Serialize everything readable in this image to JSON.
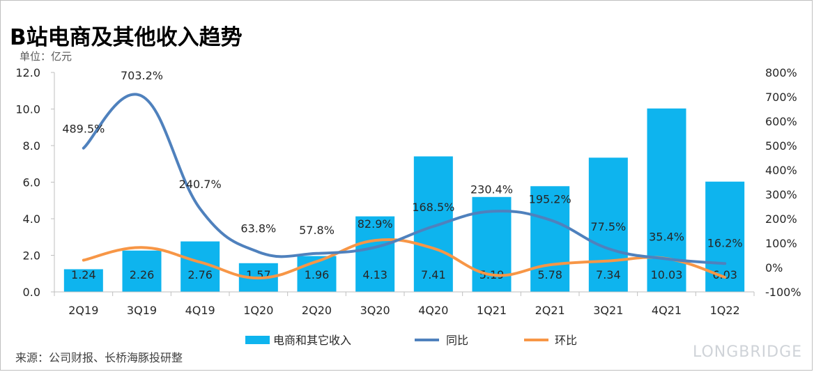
{
  "header": {
    "title": "B站电商及其他收入趋势",
    "unit": "单位：亿元"
  },
  "footer": {
    "source": "来源：公司财报、长桥海豚投研整",
    "brand": "LONGBRIDGE"
  },
  "colors": {
    "bar": "#0eb4ee",
    "yoy": "#4f81bd",
    "qoq": "#f79646"
  },
  "chart_data": {
    "type": "bar",
    "categories": [
      "2Q19",
      "3Q19",
      "4Q19",
      "1Q20",
      "2Q20",
      "3Q20",
      "4Q20",
      "1Q21",
      "2Q21",
      "3Q21",
      "4Q21",
      "1Q22"
    ],
    "series": [
      {
        "name": "电商和其它收入",
        "type": "bar",
        "axis": "left",
        "values": [
          1.24,
          2.26,
          2.76,
          1.57,
          1.96,
          4.13,
          7.41,
          5.19,
          5.78,
          7.34,
          10.03,
          6.03
        ],
        "labels": [
          "1.24",
          "2.26",
          "2.76",
          "1.57",
          "1.96",
          "4.13",
          "7.41",
          "5.19",
          "5.78",
          "7.34",
          "10.03",
          "6.03"
        ]
      },
      {
        "name": "同比",
        "type": "line",
        "axis": "right",
        "values": [
          489.5,
          703.2,
          240.7,
          63.8,
          57.8,
          82.9,
          168.5,
          230.4,
          195.2,
          77.5,
          35.4,
          16.2
        ],
        "labels": [
          "489.5%",
          "703.2%",
          "240.7%",
          "63.8%",
          "57.8%",
          "82.9%",
          "168.5%",
          "230.4%",
          "195.2%",
          "77.5%",
          "35.4%",
          "16.2%"
        ]
      },
      {
        "name": "环比",
        "type": "line",
        "axis": "right",
        "values": [
          30,
          82,
          22,
          -43,
          25,
          111,
          79,
          -30,
          11,
          27,
          37,
          -40
        ]
      }
    ],
    "y_left": {
      "min": 0,
      "max": 12,
      "ticks": [
        "0.0",
        "2.0",
        "4.0",
        "6.0",
        "8.0",
        "10.0",
        "12.0"
      ]
    },
    "y_right": {
      "min": -100,
      "max": 800,
      "ticks": [
        "-100%",
        "0%",
        "100%",
        "200%",
        "300%",
        "400%",
        "500%",
        "600%",
        "700%",
        "800%"
      ]
    },
    "legend": {
      "position": "bottom"
    },
    "grid": false
  }
}
